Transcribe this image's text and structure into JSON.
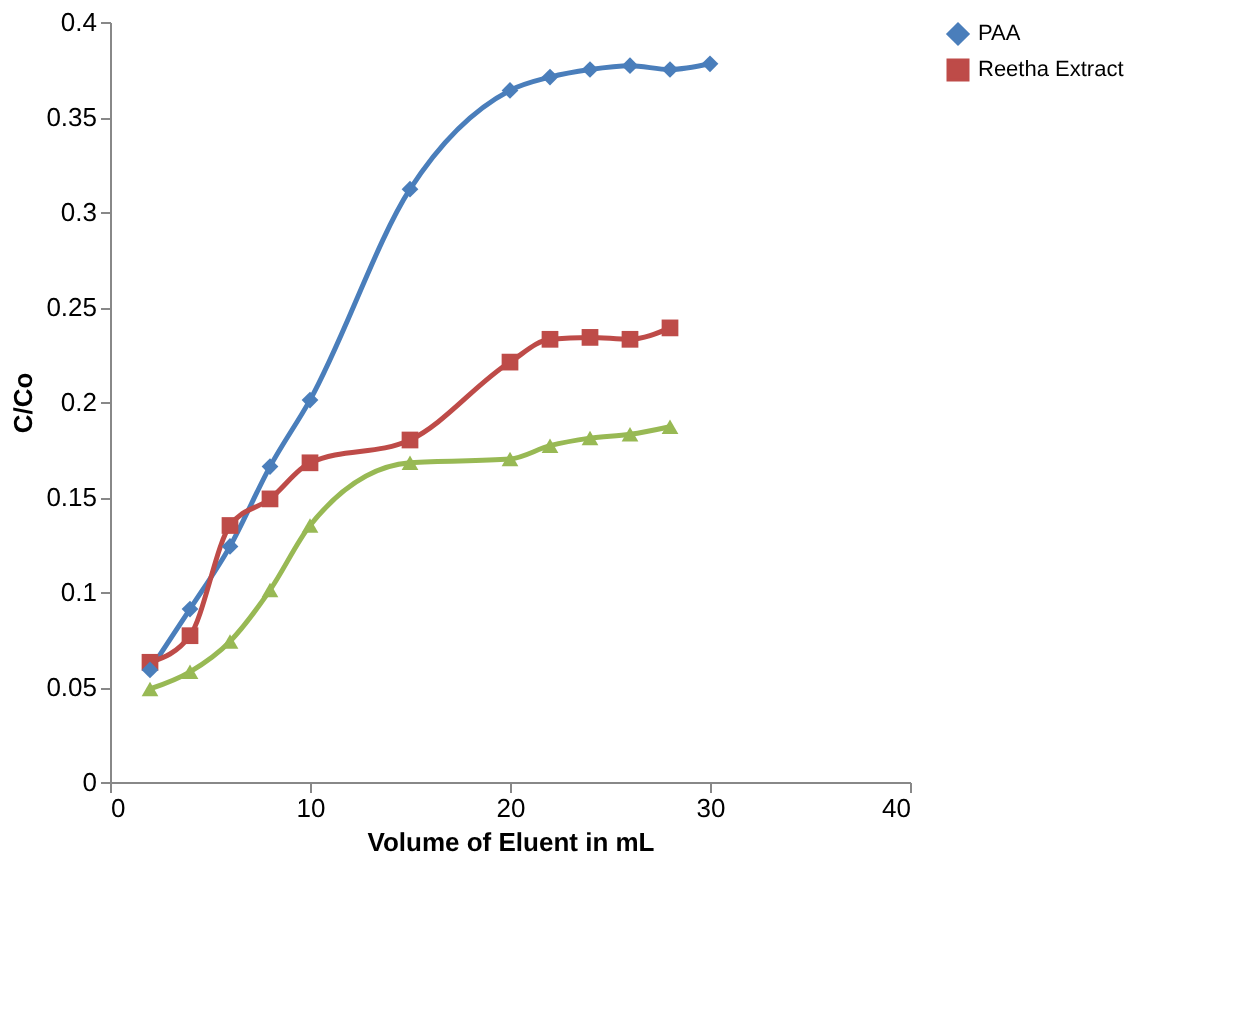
{
  "chart_data": {
    "type": "line",
    "xlabel": "Volume of Eluent in mL",
    "ylabel": "C/Co",
    "xlim": [
      0,
      40
    ],
    "xticks": [
      0,
      10,
      20,
      30,
      40
    ],
    "ylim": [
      0,
      0.4
    ],
    "yticks": [
      0,
      0.05,
      0.1,
      0.15,
      0.2,
      0.25,
      0.3,
      0.35,
      0.4
    ],
    "grid": false,
    "legend": "right",
    "line_style": "solid",
    "series": [
      {
        "name": "PAA",
        "color": "#4a7ebb",
        "marker": "diamond",
        "x": [
          2,
          4,
          6,
          8,
          10,
          15,
          20,
          22,
          24,
          26,
          28,
          30
        ],
        "values": [
          0.059,
          0.091,
          0.124,
          0.166,
          0.201,
          0.312,
          0.364,
          0.371,
          0.375,
          0.377,
          0.375,
          0.378
        ]
      },
      {
        "name": "Reetha Extract",
        "color": "#be4b48",
        "marker": "square",
        "x": [
          2,
          4,
          6,
          8,
          10,
          15,
          20,
          22,
          24,
          26,
          28
        ],
        "values": [
          0.063,
          0.077,
          0.135,
          0.149,
          0.168,
          0.18,
          0.221,
          0.233,
          0.234,
          0.233,
          0.239
        ]
      },
      {
        "color": "#98b954",
        "marker": "triangle",
        "x": [
          2,
          4,
          6,
          8,
          10,
          15,
          20,
          22,
          24,
          26,
          28
        ],
        "values": [
          0.049,
          0.058,
          0.074,
          0.101,
          0.135,
          0.168,
          0.17,
          0.177,
          0.181,
          0.183,
          0.187
        ]
      }
    ]
  }
}
